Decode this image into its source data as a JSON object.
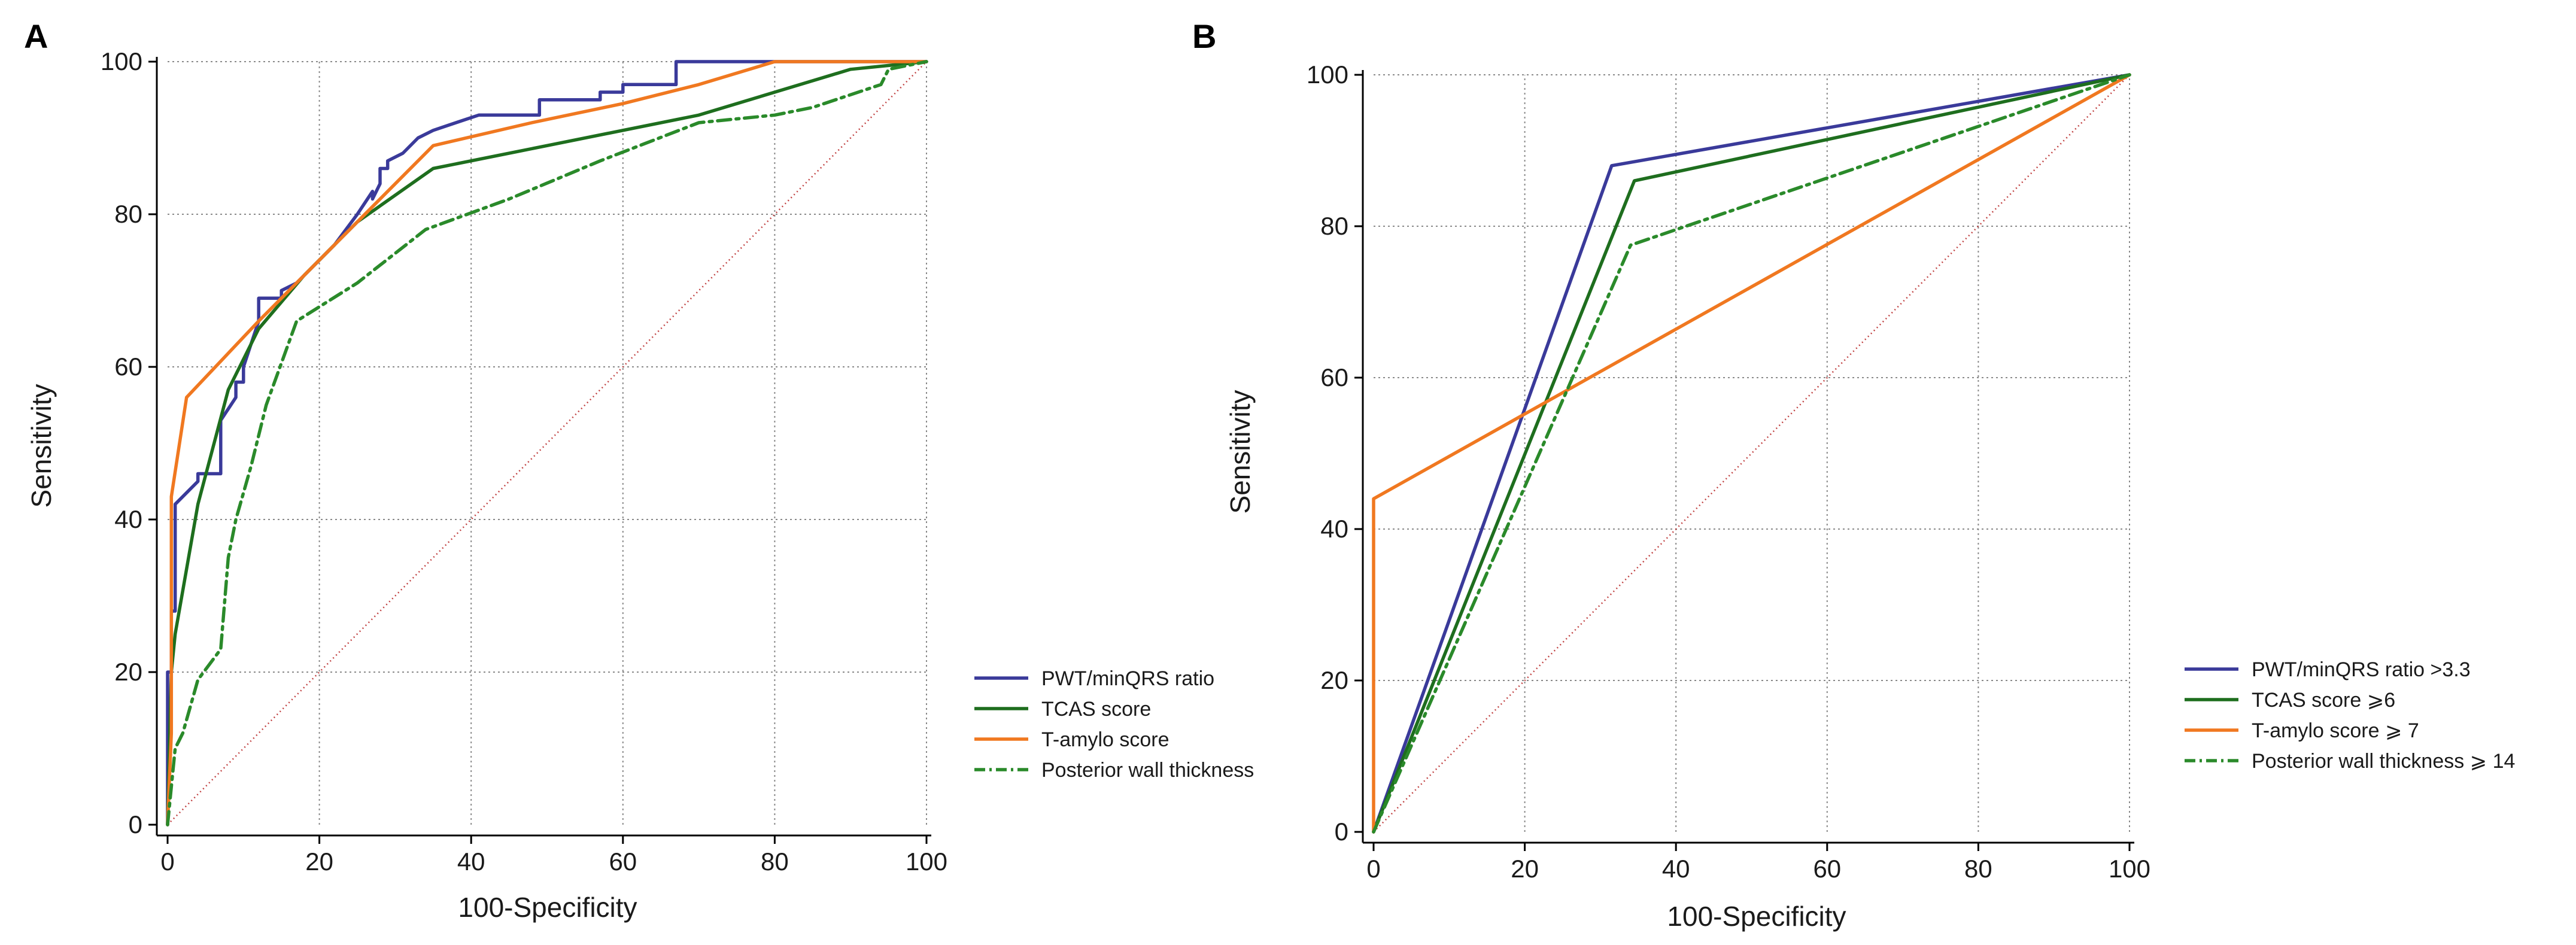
{
  "chart_data": [
    {
      "type": "line",
      "panel_label": "A",
      "xlabel": "100-Specificity",
      "ylabel": "Sensitivity",
      "xlim": [
        0,
        100
      ],
      "ylim": [
        0,
        100
      ],
      "xticks": [
        "0",
        "20",
        "40",
        "60",
        "80",
        "100"
      ],
      "yticks": [
        "0",
        "20",
        "40",
        "60",
        "80",
        "100"
      ],
      "grid": true,
      "legend_position": "right",
      "reference_line": {
        "x": [
          0,
          100
        ],
        "y": [
          0,
          100
        ],
        "color": "#c04040"
      },
      "series": [
        {
          "name": "PWT/minQRS ratio",
          "color": "#3a3a9a",
          "style": "solid",
          "x": [
            0,
            0,
            0.5,
            0.5,
            1,
            1,
            4,
            4,
            7,
            7,
            9,
            9,
            10,
            10,
            12,
            12,
            15,
            15,
            17,
            22,
            25,
            27,
            27,
            28,
            28,
            29,
            29,
            31,
            33,
            35,
            38,
            41,
            49,
            49,
            57,
            57,
            60,
            60,
            67,
            67,
            70,
            80,
            90,
            100
          ],
          "y": [
            0,
            20,
            20,
            28,
            28,
            42,
            45,
            46,
            46,
            53,
            56,
            58,
            58,
            60,
            66,
            69,
            69,
            70,
            71,
            76,
            80,
            83,
            82,
            84,
            86,
            86,
            87,
            88,
            90,
            91,
            92,
            93,
            93,
            95,
            95,
            96,
            96,
            97,
            97,
            100,
            100,
            100,
            100,
            100
          ]
        },
        {
          "name": "TCAS score",
          "color": "#1e6e1e",
          "style": "solid",
          "x": [
            0,
            0.5,
            1,
            4,
            8,
            12,
            18,
            25,
            35,
            50,
            70,
            80,
            90,
            100
          ],
          "y": [
            0,
            20,
            25,
            42,
            57,
            65,
            72,
            79,
            86,
            89,
            93,
            96,
            99,
            100
          ]
        },
        {
          "name": "T-amylo score",
          "color": "#f07820",
          "style": "solid",
          "x": [
            0,
            0.5,
            0.5,
            2.5,
            12,
            16,
            23,
            26,
            35,
            48,
            60,
            70,
            80,
            100
          ],
          "y": [
            0,
            12,
            43,
            56,
            66,
            70,
            77,
            80,
            89,
            92,
            94.5,
            97,
            100,
            100
          ]
        },
        {
          "name": "Posterior wall thickness",
          "color": "#2a8a2a",
          "style": "dashdot",
          "x": [
            0,
            0.5,
            1,
            2,
            4,
            7,
            8,
            9,
            11,
            13,
            17,
            25,
            34,
            45,
            57,
            70,
            80,
            85,
            94,
            95,
            100
          ],
          "y": [
            0,
            5,
            10,
            12,
            19,
            23,
            35,
            40,
            47,
            55,
            66,
            71,
            78,
            82,
            87,
            92,
            93,
            94,
            97,
            99,
            100
          ]
        }
      ]
    },
    {
      "type": "line",
      "panel_label": "B",
      "xlabel": "100-Specificity",
      "ylabel": "Sensitivity",
      "xlim": [
        0,
        100
      ],
      "ylim": [
        0,
        100
      ],
      "xticks": [
        "0",
        "20",
        "40",
        "60",
        "80",
        "100"
      ],
      "yticks": [
        "0",
        "20",
        "40",
        "60",
        "80",
        "100"
      ],
      "grid": true,
      "legend_position": "right",
      "reference_line": {
        "x": [
          0,
          100
        ],
        "y": [
          0,
          100
        ],
        "color": "#c04040"
      },
      "series": [
        {
          "name": "PWT/minQRS ratio  >3.3",
          "color": "#3a3a9a",
          "style": "solid",
          "x": [
            0,
            31.5,
            100
          ],
          "y": [
            0,
            88,
            100
          ]
        },
        {
          "name": "TCAS score ⩾6",
          "color": "#1e6e1e",
          "style": "solid",
          "x": [
            0,
            34.5,
            100
          ],
          "y": [
            0,
            86,
            100
          ]
        },
        {
          "name": "T-amylo score ⩾ 7",
          "color": "#f07820",
          "style": "solid",
          "x": [
            0,
            0,
            100
          ],
          "y": [
            0,
            44,
            100
          ]
        },
        {
          "name": "Posterior wall thickness ⩾ 14",
          "color": "#2a8a2a",
          "style": "dashdot",
          "x": [
            0,
            34,
            100
          ],
          "y": [
            0,
            77.5,
            100
          ]
        }
      ]
    }
  ]
}
